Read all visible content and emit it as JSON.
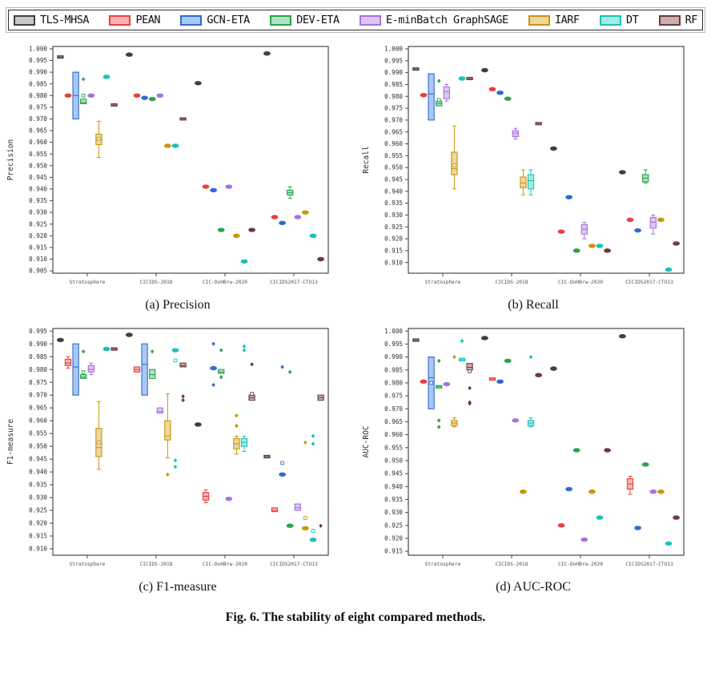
{
  "figure": {
    "caption": "Fig. 6.  The stability of eight compared methods."
  },
  "chart_data": {
    "type": "boxplot-grid",
    "description": "Stability (distribution over runs) of eight methods on four datasets for four metrics",
    "datasets": [
      "Stratosphere",
      "CICIDS-2018",
      "CIC-DoHBrw-2020",
      "CICIDS2017-CTU13"
    ],
    "methods": [
      {
        "name": "TLS-MHSA",
        "stroke": "#3f3f3f",
        "fill": "#c8c8c8"
      },
      {
        "name": "PEAN",
        "stroke": "#e8403c",
        "fill": "#f7b4b4"
      },
      {
        "name": "GCN-ETA",
        "stroke": "#2e6bd0",
        "fill": "#a9c9f4"
      },
      {
        "name": "DEV-ETA",
        "stroke": "#2ca24c",
        "fill": "#b2e0c2"
      },
      {
        "name": "E-minBatch GraphSAGE",
        "stroke": "#a672e0",
        "fill": "#ddc6f4"
      },
      {
        "name": "IARF",
        "stroke": "#c8960c",
        "fill": "#ecd8a0"
      },
      {
        "name": "DT",
        "stroke": "#17c3b9",
        "fill": "#a9e9e3"
      },
      {
        "name": "RF",
        "stroke": "#6e3a3a",
        "fill": "#c9b0b0"
      }
    ],
    "legend_border": "#2f2f2f",
    "subplots": [
      {
        "id": "a",
        "caption": "(a) Precision",
        "ylabel": "Precision",
        "yticks": {
          "max": 1.0,
          "min": 0.905,
          "step": 0.005
        },
        "ylim": [
          0.904,
          1.001
        ],
        "groups": [
          [
            {
              "m": 0.9965,
              "b": [
                0.996,
                0.997
              ]
            },
            {
              "m": 0.98
            },
            {
              "b": [
                0.97,
                0.99
              ],
              "m": 0.98
            },
            {
              "b": [
                0.9765,
                0.9785
              ],
              "m": 0.977,
              "s": 0.98,
              "o": [
                0.987
              ]
            },
            {
              "m": 0.98
            },
            {
              "b": [
                0.959,
                0.9635
              ],
              "m": 0.961,
              "w": [
                0.9535,
                0.969
              ],
              "s": 0.9615
            },
            {
              "m": 0.988
            },
            {
              "b": [
                0.9755,
                0.9765
              ],
              "m": 0.976
            }
          ],
          [
            {
              "m": 0.9975
            },
            {
              "m": 0.98
            },
            {
              "m": 0.979
            },
            {
              "m": 0.9785
            },
            {
              "m": 0.98
            },
            {
              "m": 0.9585
            },
            {
              "m": 0.9585
            },
            {
              "b": [
                0.9695,
                0.9705
              ],
              "m": 0.97
            }
          ],
          [
            {
              "m": 0.9853
            },
            {
              "m": 0.941
            },
            {
              "m": 0.9395
            },
            {
              "m": 0.9225
            },
            {
              "m": 0.941
            },
            {
              "m": 0.92
            },
            {
              "m": 0.909
            },
            {
              "m": 0.9225
            }
          ],
          [
            {
              "m": 0.998
            },
            {
              "m": 0.928
            },
            {
              "m": 0.9255
            },
            {
              "b": [
                0.9375,
                0.9395
              ],
              "m": 0.9385,
              "w": [
                0.936,
                0.941
              ]
            },
            {
              "m": 0.928
            },
            {
              "m": 0.93
            },
            {
              "m": 0.92
            },
            {
              "m": 0.91
            }
          ]
        ]
      },
      {
        "id": "b",
        "caption": "(b) Recall",
        "ylabel": "Recall",
        "yticks": {
          "max": 1.0,
          "min": 0.91,
          "step": 0.005
        },
        "ylim": [
          0.9055,
          1.001
        ],
        "groups": [
          [
            {
              "b": [
                0.991,
                0.992
              ],
              "m": 0.9915
            },
            {
              "m": 0.9805
            },
            {
              "b": [
                0.97,
                0.9895
              ],
              "m": 0.981
            },
            {
              "b": [
                0.976,
                0.978
              ],
              "m": 0.977,
              "s": 0.9785,
              "o": [
                0.9865
              ]
            },
            {
              "b": [
                0.979,
                0.984
              ],
              "m": 0.982,
              "w": [
                0.978,
                0.985
              ]
            },
            {
              "b": [
                0.947,
                0.9565
              ],
              "m": 0.9495,
              "w": [
                0.941,
                0.9675
              ],
              "s": 0.951
            },
            {
              "m": 0.9875
            },
            {
              "b": [
                0.987,
                0.988
              ],
              "m": 0.9875
            }
          ],
          [
            {
              "m": 0.991
            },
            {
              "m": 0.983
            },
            {
              "m": 0.9815
            },
            {
              "m": 0.979
            },
            {
              "b": [
                0.963,
                0.9655
              ],
              "m": 0.9645,
              "w": [
                0.962,
                0.9665
              ]
            },
            {
              "b": [
                0.9415,
                0.946
              ],
              "m": 0.9435,
              "w": [
                0.9385,
                0.949
              ]
            },
            {
              "b": [
                0.941,
                0.947
              ],
              "m": 0.9445,
              "w": [
                0.9385,
                0.949
              ]
            },
            {
              "b": [
                0.968,
                0.969
              ],
              "m": 0.9685
            }
          ],
          [
            {
              "m": 0.958
            },
            {
              "m": 0.923
            },
            {
              "m": 0.9375
            },
            {
              "m": 0.915
            },
            {
              "b": [
                0.922,
                0.926
              ],
              "m": 0.924,
              "w": [
                0.92,
                0.927
              ]
            },
            {
              "m": 0.917
            },
            {
              "m": 0.917
            },
            {
              "m": 0.915
            }
          ],
          [
            {
              "m": 0.948
            },
            {
              "m": 0.928
            },
            {
              "m": 0.9235
            },
            {
              "b": [
                0.944,
                0.947
              ],
              "m": 0.9455,
              "w": [
                0.9435,
                0.949
              ]
            },
            {
              "b": [
                0.9245,
                0.929
              ],
              "m": 0.927,
              "w": [
                0.922,
                0.93
              ]
            },
            {
              "m": 0.928
            },
            {
              "m": 0.907
            },
            {
              "m": 0.918
            }
          ]
        ]
      },
      {
        "id": "c",
        "caption": "(c) F1-measure",
        "ylabel": "F1-measure",
        "yticks": {
          "max": 0.995,
          "min": 0.91,
          "step": 0.005
        },
        "ylim": [
          0.9075,
          0.996
        ],
        "groups": [
          [
            {
              "m": 0.9915
            },
            {
              "b": [
                0.9815,
                0.984
              ],
              "m": 0.9825,
              "w": [
                0.9805,
                0.985
              ]
            },
            {
              "b": [
                0.97,
                0.99
              ],
              "m": 0.981
            },
            {
              "b": [
                0.9765,
                0.978
              ],
              "m": 0.977,
              "s": 0.979,
              "o": [
                0.987
              ]
            },
            {
              "b": [
                0.979,
                0.9815
              ],
              "m": 0.98,
              "w": [
                0.978,
                0.9825
              ]
            },
            {
              "b": [
                0.946,
                0.957
              ],
              "m": 0.9495,
              "w": [
                0.941,
                0.9675
              ],
              "s": 0.9515
            },
            {
              "m": 0.988
            },
            {
              "b": [
                0.9875,
                0.9885
              ],
              "m": 0.988
            }
          ],
          [
            {
              "m": 0.9935
            },
            {
              "b": [
                0.979,
                0.981
              ],
              "m": 0.98
            },
            {
              "b": [
                0.97,
                0.99
              ],
              "m": 0.982
            },
            {
              "b": [
                0.9765,
                0.98
              ],
              "m": 0.978,
              "o": [
                0.987
              ]
            },
            {
              "b": [
                0.963,
                0.965
              ],
              "m": 0.9635
            },
            {
              "b": [
                0.9525,
                0.96
              ],
              "m": 0.954,
              "w": [
                0.9455,
                0.9705
              ],
              "o": [
                0.939
              ]
            },
            {
              "m": 0.9875,
              "s": 0.9835,
              "o": [
                0.9445,
                0.942
              ]
            },
            {
              "b": [
                0.981,
                0.9825
              ],
              "m": 0.9815,
              "o": [
                0.9695,
                0.968
              ]
            }
          ],
          [
            {
              "m": 0.9585
            },
            {
              "b": [
                0.929,
                0.932
              ],
              "m": 0.9305,
              "w": [
                0.928,
                0.933
              ]
            },
            {
              "m": 0.9805,
              "o": [
                0.99,
                0.974
              ]
            },
            {
              "b": [
                0.9785,
                0.98
              ],
              "m": 0.979,
              "o": [
                0.9875,
                0.977
              ]
            },
            {
              "m": 0.9295
            },
            {
              "b": [
                0.949,
                0.953
              ],
              "m": 0.951,
              "w": [
                0.947,
                0.954
              ],
              "o": [
                0.962,
                0.958
              ]
            },
            {
              "b": [
                0.95,
                0.953
              ],
              "m": 0.9515,
              "w": [
                0.948,
                0.954
              ],
              "o": [
                0.989,
                0.9875
              ]
            },
            {
              "b": [
                0.968,
                0.97
              ],
              "m": 0.969,
              "s": 0.9705,
              "o": [
                0.982
              ]
            }
          ],
          [
            {
              "b": [
                0.9455,
                0.9465
              ],
              "m": 0.946
            },
            {
              "b": [
                0.9245,
                0.926
              ],
              "m": 0.925
            },
            {
              "m": 0.939,
              "s": 0.9435,
              "o": [
                0.981
              ]
            },
            {
              "m": 0.919,
              "o": [
                0.979
              ]
            },
            {
              "b": [
                0.925,
                0.9275
              ],
              "m": 0.926
            },
            {
              "m": 0.918,
              "s": 0.922,
              "o": [
                0.9515
              ]
            },
            {
              "m": 0.9135,
              "s": 0.917,
              "o": [
                0.954,
                0.951
              ]
            },
            {
              "b": [
                0.968,
                0.97
              ],
              "m": 0.969,
              "o": [
                0.919
              ]
            }
          ]
        ]
      },
      {
        "id": "d",
        "caption": "(d) AUC-ROC",
        "ylabel": "AUC-ROC",
        "yticks": {
          "max": 1.0,
          "min": 0.915,
          "step": 0.005
        },
        "ylim": [
          0.9135,
          1.001
        ],
        "groups": [
          [
            {
              "b": [
                0.996,
                0.997
              ],
              "m": 0.9965
            },
            {
              "m": 0.9805
            },
            {
              "b": [
                0.97,
                0.99
              ],
              "m": 0.982,
              "s": 0.98
            },
            {
              "b": [
                0.978,
                0.979
              ],
              "m": 0.9785,
              "o": [
                0.9885,
                0.9655,
                0.963
              ]
            },
            {
              "m": 0.9795
            },
            {
              "b": [
                0.9635,
                0.9655
              ],
              "m": 0.9645,
              "w": [
                0.963,
                0.9665
              ],
              "o": [
                0.99
              ]
            },
            {
              "b": [
                0.9885,
                0.9895
              ],
              "m": 0.989,
              "o": [
                0.9962
              ]
            },
            {
              "b": [
                0.985,
                0.9875
              ],
              "m": 0.986,
              "s": 0.9845,
              "o": [
                0.978,
                0.9725,
                0.972
              ]
            }
          ],
          [
            {
              "m": 0.9973
            },
            {
              "b": [
                0.981,
                0.982
              ],
              "m": 0.9815
            },
            {
              "m": 0.9805
            },
            {
              "m": 0.9885
            },
            {
              "m": 0.9655
            },
            {
              "m": 0.938
            },
            {
              "b": [
                0.9635,
                0.9655
              ],
              "m": 0.9645,
              "w": [
                0.963,
                0.9665
              ],
              "o": [
                0.99
              ]
            },
            {
              "m": 0.983
            }
          ],
          [
            {
              "m": 0.9855
            },
            {
              "m": 0.925
            },
            {
              "m": 0.939
            },
            {
              "m": 0.954
            },
            {
              "m": 0.9195
            },
            {
              "m": 0.938
            },
            {
              "m": 0.928
            },
            {
              "m": 0.954
            }
          ],
          [
            {
              "m": 0.998
            },
            {
              "b": [
                0.939,
                0.943
              ],
              "m": 0.941,
              "w": [
                0.937,
                0.944
              ]
            },
            {
              "m": 0.924
            },
            {
              "m": 0.9485
            },
            {
              "m": 0.938
            },
            {
              "m": 0.938
            },
            {
              "m": 0.918
            },
            {
              "m": 0.928
            }
          ]
        ]
      }
    ]
  }
}
